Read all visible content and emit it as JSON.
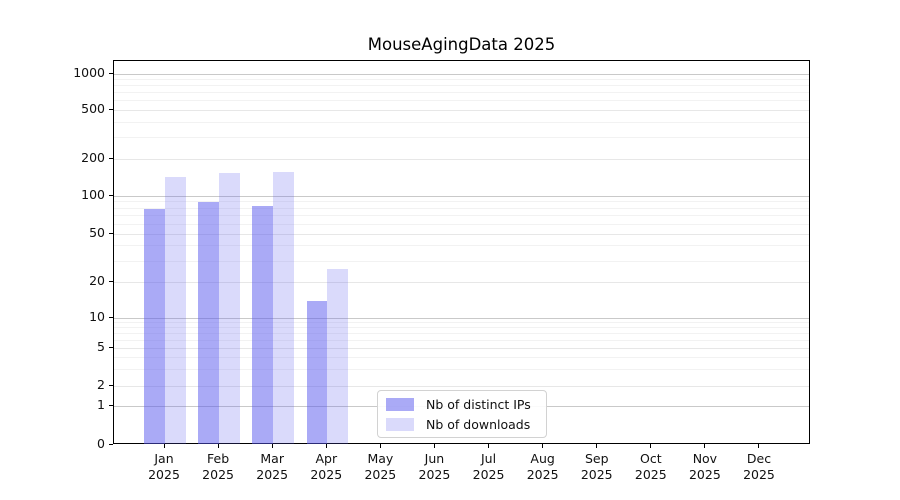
{
  "chart_data": {
    "type": "bar",
    "title": "MouseAgingData 2025",
    "categories": [
      "Jan 2025",
      "Feb 2025",
      "Mar 2025",
      "Apr 2025",
      "May 2025",
      "Jun 2025",
      "Jul 2025",
      "Aug 2025",
      "Sep 2025",
      "Oct 2025",
      "Nov 2025",
      "Dec 2025"
    ],
    "series": [
      {
        "name": "Nb of distinct IPs",
        "color": "#aaaaf6",
        "fill": "rgba(85,85,238,0.5)",
        "values": [
          79,
          90,
          83,
          14,
          0,
          0,
          0,
          0,
          0,
          0,
          0,
          0
        ]
      },
      {
        "name": "Nb of downloads",
        "color": "#d9d9fa",
        "fill": "rgba(85,85,238,0.22)",
        "values": [
          143,
          154,
          158,
          26,
          0,
          0,
          0,
          0,
          0,
          0,
          0,
          0
        ]
      }
    ],
    "xlabel": "",
    "ylabel": "",
    "y_scale": "symlog",
    "y_ticks": [
      0,
      1,
      2,
      5,
      10,
      20,
      50,
      100,
      200,
      500,
      1000
    ],
    "y_tick_labels": [
      "0",
      "1",
      "2",
      "5",
      "10",
      "20",
      "50",
      "100",
      "200",
      "500",
      "1000"
    ],
    "ylim": [
      0,
      1200
    ],
    "grid": "horizontal",
    "legend_position": "lower-center"
  }
}
